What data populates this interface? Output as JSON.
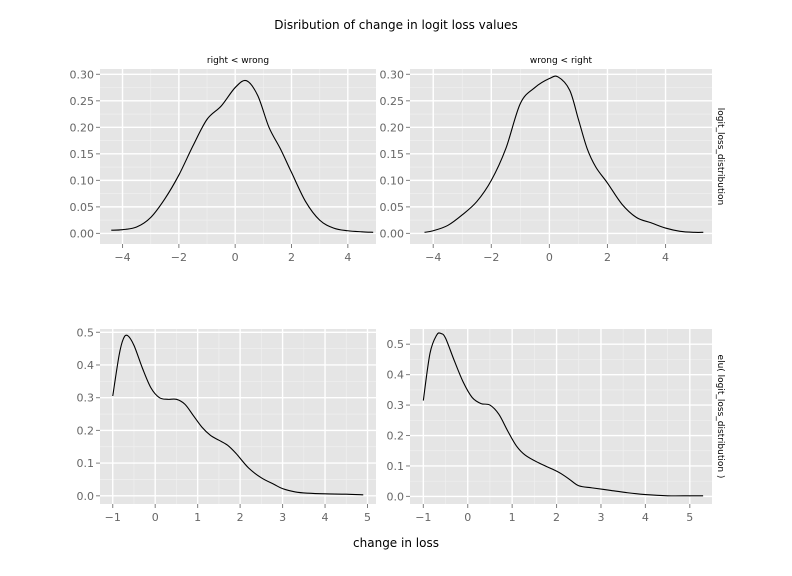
{
  "figure": {
    "title": "Disribution of change in logit loss values",
    "xlabel": "change in loss"
  },
  "chart_data": [
    {
      "type": "line",
      "column_label": "right < wrong",
      "row_label": "",
      "xlim": [
        -4.8,
        5.0
      ],
      "ylim": [
        -0.02,
        0.31
      ],
      "xticks": [
        -4,
        -2,
        0,
        2,
        4
      ],
      "yticks": [
        0.0,
        0.05,
        0.1,
        0.15,
        0.2,
        0.25,
        0.3
      ],
      "ytick_labels": [
        "0.00",
        "0.05",
        "0.10",
        "0.15",
        "0.20",
        "0.25",
        "0.30"
      ],
      "grid": true,
      "series": [
        {
          "x": [
            -4.4,
            -4.0,
            -3.5,
            -3.0,
            -2.5,
            -2.0,
            -1.5,
            -1.0,
            -0.5,
            0.0,
            0.4,
            0.8,
            1.2,
            1.6,
            2.0,
            2.5,
            3.0,
            3.5,
            4.0,
            4.5,
            4.9
          ],
          "y": [
            0.006,
            0.007,
            0.012,
            0.03,
            0.065,
            0.11,
            0.165,
            0.215,
            0.24,
            0.275,
            0.288,
            0.26,
            0.2,
            0.16,
            0.115,
            0.06,
            0.025,
            0.01,
            0.005,
            0.003,
            0.002
          ]
        }
      ]
    },
    {
      "type": "line",
      "column_label": "wrong < right",
      "row_label": "logit_loss_distribution",
      "xlim": [
        -4.8,
        5.6
      ],
      "ylim": [
        -0.02,
        0.31
      ],
      "xticks": [
        -4,
        -2,
        0,
        2,
        4
      ],
      "yticks": [
        0.0,
        0.05,
        0.1,
        0.15,
        0.2,
        0.25,
        0.3
      ],
      "ytick_labels": [
        "0.00",
        "0.05",
        "0.10",
        "0.15",
        "0.20",
        "0.25",
        "0.30"
      ],
      "grid": true,
      "series": [
        {
          "x": [
            -4.3,
            -4.0,
            -3.5,
            -3.0,
            -2.5,
            -2.0,
            -1.5,
            -1.0,
            -0.5,
            0.0,
            0.3,
            0.7,
            1.0,
            1.3,
            1.6,
            2.0,
            2.5,
            3.0,
            3.5,
            4.0,
            4.5,
            5.0,
            5.3
          ],
          "y": [
            0.002,
            0.005,
            0.015,
            0.035,
            0.06,
            0.1,
            0.16,
            0.245,
            0.275,
            0.292,
            0.295,
            0.27,
            0.215,
            0.16,
            0.125,
            0.095,
            0.055,
            0.03,
            0.02,
            0.01,
            0.004,
            0.002,
            0.002
          ]
        }
      ]
    },
    {
      "type": "line",
      "column_label": "",
      "row_label": "",
      "xlim": [
        -1.3,
        5.2
      ],
      "ylim": [
        -0.025,
        0.51
      ],
      "xticks": [
        -1,
        0,
        1,
        2,
        3,
        4,
        5
      ],
      "yticks": [
        0.0,
        0.1,
        0.2,
        0.3,
        0.4,
        0.5
      ],
      "ytick_labels": [
        "0.0",
        "0.1",
        "0.2",
        "0.3",
        "0.4",
        "0.5"
      ],
      "grid": true,
      "series": [
        {
          "x": [
            -1.0,
            -0.85,
            -0.75,
            -0.65,
            -0.5,
            -0.3,
            -0.1,
            0.1,
            0.3,
            0.5,
            0.7,
            0.9,
            1.1,
            1.3,
            1.5,
            1.7,
            1.9,
            2.2,
            2.5,
            2.8,
            3.0,
            3.3,
            3.6,
            4.0,
            4.5,
            4.9
          ],
          "y": [
            0.305,
            0.43,
            0.48,
            0.49,
            0.46,
            0.39,
            0.33,
            0.3,
            0.295,
            0.295,
            0.28,
            0.245,
            0.21,
            0.185,
            0.17,
            0.155,
            0.13,
            0.085,
            0.055,
            0.035,
            0.022,
            0.012,
            0.008,
            0.006,
            0.005,
            0.003
          ]
        }
      ]
    },
    {
      "type": "line",
      "column_label": "",
      "row_label": "elu( logit_loss_distribution )",
      "xlim": [
        -1.3,
        5.5
      ],
      "ylim": [
        -0.025,
        0.55
      ],
      "xticks": [
        -1,
        0,
        1,
        2,
        3,
        4,
        5
      ],
      "yticks": [
        0.0,
        0.1,
        0.2,
        0.3,
        0.4,
        0.5
      ],
      "ytick_labels": [
        "0.0",
        "0.1",
        "0.2",
        "0.3",
        "0.4",
        "0.5"
      ],
      "grid": true,
      "series": [
        {
          "x": [
            -1.0,
            -0.85,
            -0.7,
            -0.6,
            -0.5,
            -0.3,
            -0.1,
            0.1,
            0.3,
            0.5,
            0.7,
            0.9,
            1.1,
            1.3,
            1.6,
            1.9,
            2.1,
            2.3,
            2.5,
            2.8,
            3.2,
            3.6,
            4.0,
            4.5,
            5.0,
            5.3
          ],
          "y": [
            0.315,
            0.47,
            0.53,
            0.535,
            0.52,
            0.445,
            0.375,
            0.325,
            0.305,
            0.3,
            0.27,
            0.215,
            0.165,
            0.135,
            0.11,
            0.09,
            0.075,
            0.055,
            0.035,
            0.028,
            0.02,
            0.012,
            0.006,
            0.002,
            0.002,
            0.002
          ]
        }
      ]
    }
  ]
}
